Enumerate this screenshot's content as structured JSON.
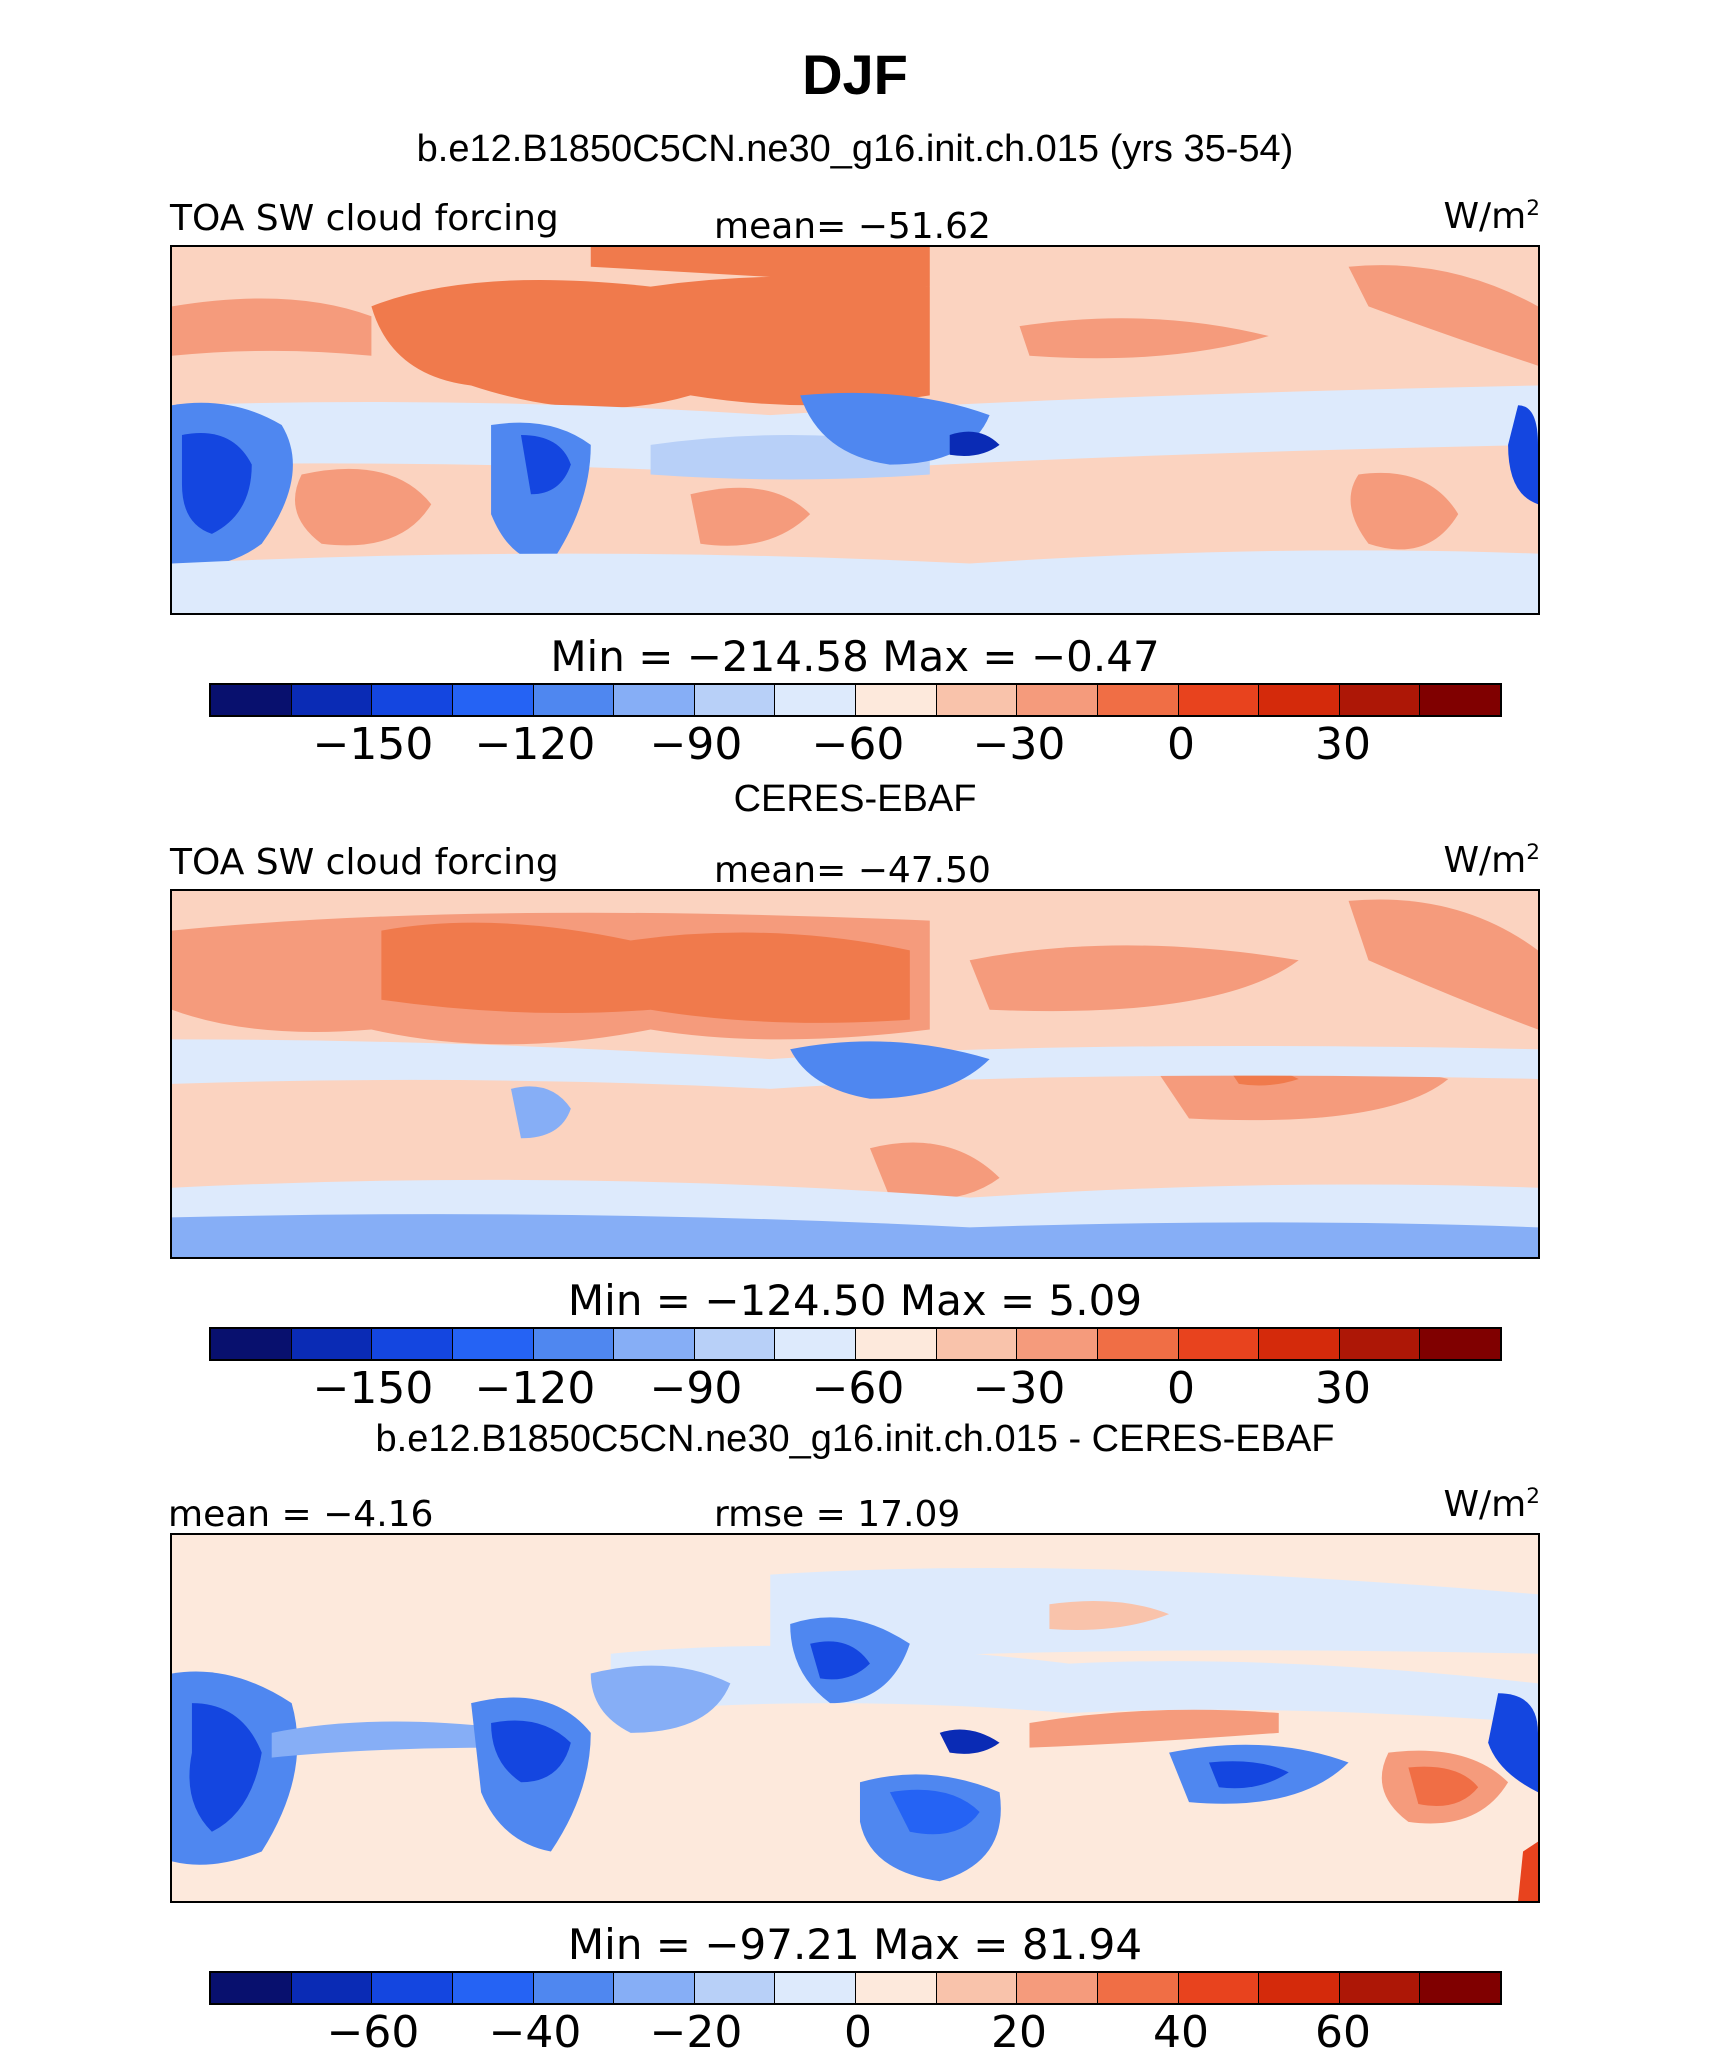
{
  "season": "DJF",
  "palette": [
    "#08106e",
    "#0a2bb5",
    "#1446e0",
    "#2563f4",
    "#4f87f0",
    "#86aef6",
    "#b8d0f8",
    "#ddeafc",
    "#fde9dc",
    "#f9c3ab",
    "#f59b7c",
    "#f06e45",
    "#e8431e",
    "#d42a0b",
    "#ad1706",
    "#800000"
  ],
  "panels": [
    {
      "heading": "b.e12.B1850C5CN.ne30_g16.init.ch.015 (yrs 35-54)",
      "left_label": "TOA SW cloud forcing",
      "center_label": "mean= −51.62",
      "units": "W/m",
      "units_sup": "2",
      "minmax": "Min  =  −214.58  Max  =    −0.47",
      "ticks": [
        "−150",
        "−120",
        "−90",
        "−60",
        "−30",
        "0",
        "30"
      ],
      "background": "#fbd3c0"
    },
    {
      "heading": "CERES-EBAF",
      "left_label": "TOA SW cloud forcing",
      "center_label": "mean= −47.50",
      "units": "W/m",
      "units_sup": "2",
      "minmax": "Min  =  −124.50  Max  =     5.09",
      "ticks": [
        "−150",
        "−120",
        "−90",
        "−60",
        "−30",
        "0",
        "30"
      ],
      "background": "#fbd3c0"
    },
    {
      "heading": "b.e12.B1850C5CN.ne30_g16.init.ch.015 - CERES-EBAF",
      "left_label": "mean  =   −4.16",
      "center_label": "rmse  =   17.09",
      "units": "W/m",
      "units_sup": "2",
      "minmax": "Min  =  −97.21  Max  =   81.94",
      "ticks": [
        "−60",
        "−40",
        "−20",
        "0",
        "20",
        "40",
        "60"
      ],
      "background": "#fde9dc"
    }
  ]
}
